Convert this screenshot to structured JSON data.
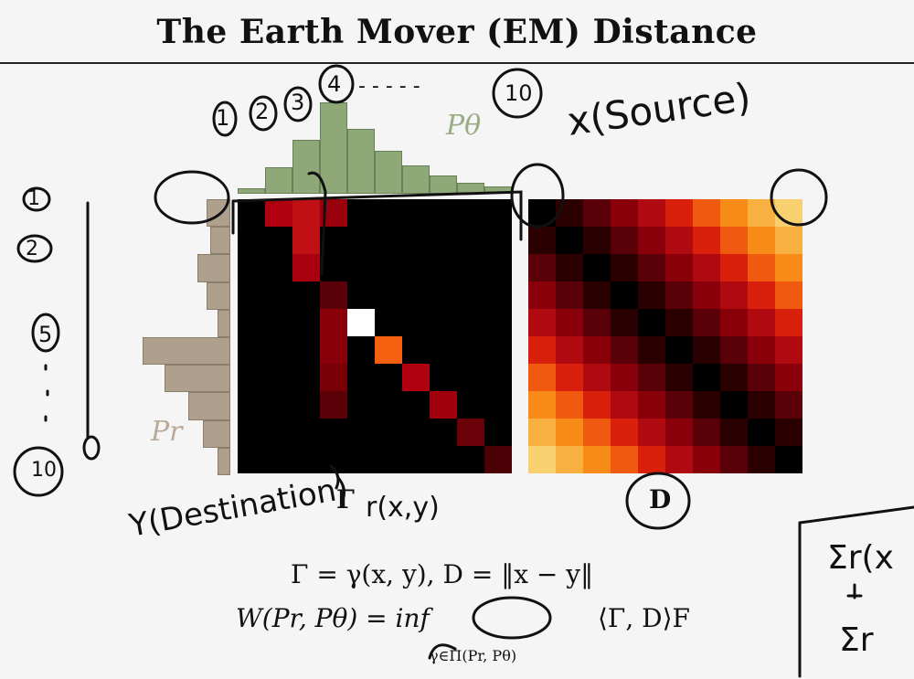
{
  "slide": {
    "title": "The Earth Mover (EM) Distance",
    "p_theta_label": "Pθ",
    "p_r_label": "Pr",
    "gamma_label": "Γ",
    "d_label": "D",
    "equation_1": "Γ = γ(x, y),  D = ‖x − y‖",
    "equation_2_lhs": "W(Pr, Pθ) =  inf",
    "equation_2_sub": "γ∈Π(Pr, Pθ)",
    "equation_2_rhs": "⟨Γ, D⟩F"
  },
  "histograms": {
    "top_color": "#8fa878",
    "left_color": "#aea08c",
    "top_values": [
      0.06,
      0.28,
      0.58,
      0.98,
      0.7,
      0.46,
      0.3,
      0.2,
      0.12,
      0.08
    ],
    "left_values": [
      0.26,
      0.22,
      0.36,
      0.26,
      0.14,
      0.96,
      0.72,
      0.46,
      0.3,
      0.14
    ]
  },
  "gamma_matrix_colors": [
    [
      "#000000",
      "#b00010",
      "#c01014",
      "#9a000c",
      "#000000",
      "#000000",
      "#000000",
      "#000000",
      "#000000",
      "#000000"
    ],
    [
      "#000000",
      "#000000",
      "#c01014",
      "#000000",
      "#000000",
      "#000000",
      "#000000",
      "#000000",
      "#000000",
      "#000000"
    ],
    [
      "#000000",
      "#000000",
      "#a8000e",
      "#000000",
      "#000000",
      "#000000",
      "#000000",
      "#000000",
      "#000000",
      "#000000"
    ],
    [
      "#000000",
      "#000000",
      "#000000",
      "#5a0008",
      "#000000",
      "#000000",
      "#000000",
      "#000000",
      "#000000",
      "#000000"
    ],
    [
      "#000000",
      "#000000",
      "#000000",
      "#8a000a",
      "#ffffff",
      "#000000",
      "#000000",
      "#000000",
      "#000000",
      "#000000"
    ],
    [
      "#000000",
      "#000000",
      "#000000",
      "#8a000a",
      "#000000",
      "#f46010",
      "#000000",
      "#000000",
      "#000000",
      "#000000"
    ],
    [
      "#000000",
      "#000000",
      "#000000",
      "#7a0008",
      "#000000",
      "#000000",
      "#b00010",
      "#000000",
      "#000000",
      "#000000"
    ],
    [
      "#000000",
      "#000000",
      "#000000",
      "#5a0006",
      "#000000",
      "#000000",
      "#000000",
      "#a0000e",
      "#000000",
      "#000000"
    ],
    [
      "#000000",
      "#000000",
      "#000000",
      "#000000",
      "#000000",
      "#000000",
      "#000000",
      "#000000",
      "#6a0008",
      "#000000"
    ],
    [
      "#000000",
      "#000000",
      "#000000",
      "#000000",
      "#000000",
      "#000000",
      "#000000",
      "#000000",
      "#000000",
      "#4a0004"
    ]
  ],
  "d_matrix_colors": [
    [
      "#000000",
      "#2a0000",
      "#5a0008",
      "#8a000a",
      "#b00a10",
      "#d8200c",
      "#f05a10",
      "#f88a18",
      "#f8b040",
      "#f8d070"
    ],
    [
      "#2a0000",
      "#000000",
      "#2a0000",
      "#5a0008",
      "#8a000a",
      "#b00a10",
      "#d8200c",
      "#f05a10",
      "#f88a18",
      "#f8b040"
    ],
    [
      "#5a0008",
      "#2a0000",
      "#000000",
      "#2a0000",
      "#5a0008",
      "#8a000a",
      "#b00a10",
      "#d8200c",
      "#f05a10",
      "#f88a18"
    ],
    [
      "#8a000a",
      "#5a0008",
      "#2a0000",
      "#000000",
      "#2a0000",
      "#5a0008",
      "#8a000a",
      "#b00a10",
      "#d8200c",
      "#f05a10"
    ],
    [
      "#b00a10",
      "#8a000a",
      "#5a0008",
      "#2a0000",
      "#000000",
      "#2a0000",
      "#5a0008",
      "#8a000a",
      "#b00a10",
      "#d8200c"
    ],
    [
      "#d8200c",
      "#b00a10",
      "#8a000a",
      "#5a0008",
      "#2a0000",
      "#000000",
      "#2a0000",
      "#5a0008",
      "#8a000a",
      "#b00a10"
    ],
    [
      "#f05a10",
      "#d8200c",
      "#b00a10",
      "#8a000a",
      "#5a0008",
      "#2a0000",
      "#000000",
      "#2a0000",
      "#5a0008",
      "#8a000a"
    ],
    [
      "#f88a18",
      "#f05a10",
      "#d8200c",
      "#b00a10",
      "#8a000a",
      "#5a0008",
      "#2a0000",
      "#000000",
      "#2a0000",
      "#5a0008"
    ],
    [
      "#f8b040",
      "#f88a18",
      "#f05a10",
      "#d8200c",
      "#b00a10",
      "#8a000a",
      "#5a0008",
      "#2a0000",
      "#000000",
      "#2a0000"
    ],
    [
      "#f8d070",
      "#f8b040",
      "#f88a18",
      "#f05a10",
      "#d8200c",
      "#b00a10",
      "#8a000a",
      "#5a0008",
      "#2a0000",
      "#000000"
    ]
  ],
  "handwriting": {
    "source_label": "x(Source)",
    "destination_label": "Y(Destination)",
    "gamma_note": "r(x,y)",
    "top_numbers": [
      "1",
      "2",
      "3",
      "4",
      "10"
    ],
    "top_ellipsis": "- - - - -",
    "left_numbers": [
      "1",
      "2",
      "5",
      "10"
    ],
    "right_sum_1": "Σr(x",
    "right_sum_2": "Σr"
  }
}
